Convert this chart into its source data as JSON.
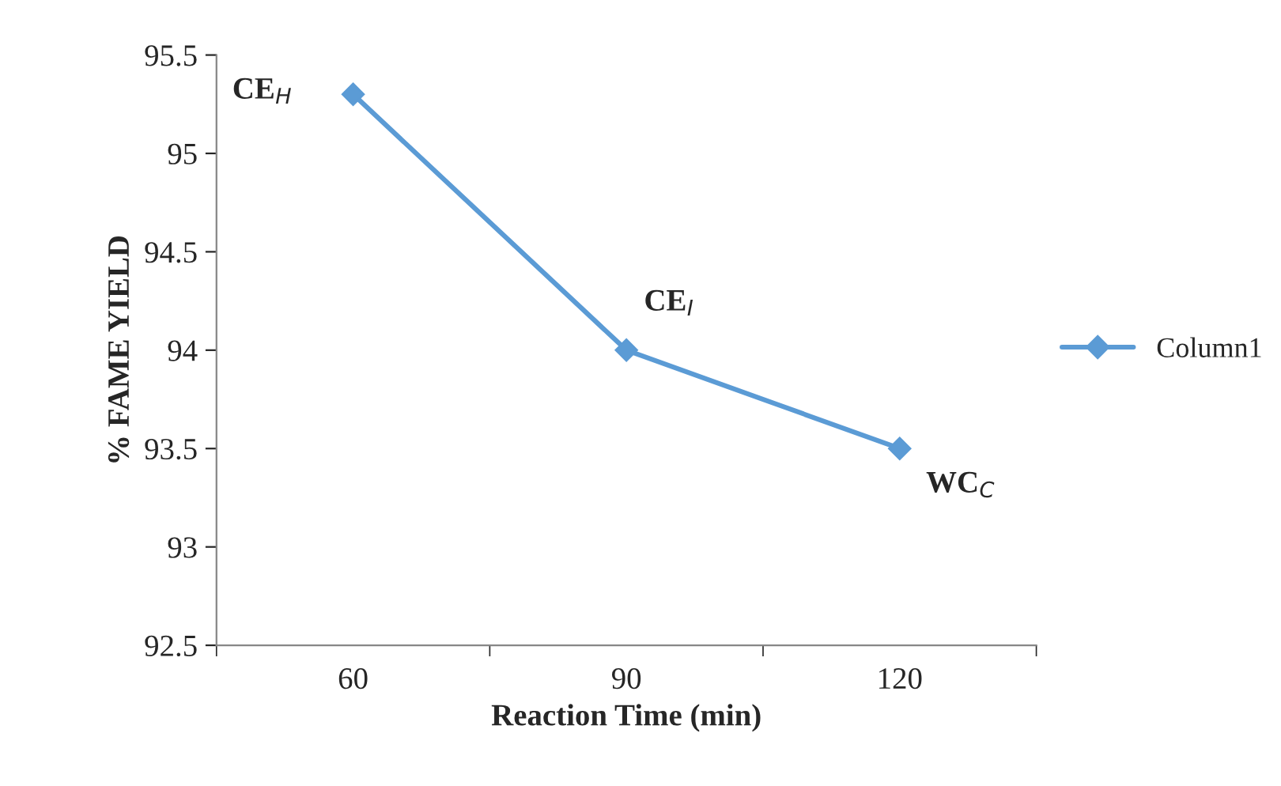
{
  "chart_data": {
    "type": "line",
    "xlabel": "Reaction Time (min)",
    "ylabel": "% FAME YIELD",
    "categories": [
      "60",
      "90",
      "120"
    ],
    "series": [
      {
        "name": "Column1",
        "color": "#5b9bd5",
        "values": [
          95.3,
          94,
          93.5
        ]
      }
    ],
    "ylim": [
      92.5,
      95.5
    ],
    "yticks": [
      92.5,
      93,
      93.5,
      94,
      94.5,
      95,
      95.5
    ],
    "marker": "diamond",
    "line_style": "solid",
    "legend": "right",
    "grid": false,
    "annotations": [
      {
        "text": "CE$_{H}$",
        "x": "60",
        "y": 95.3
      },
      {
        "text": "CE$_{I}$",
        "x": "90",
        "y": 94
      },
      {
        "text": "WC$_{C}$",
        "x": "120",
        "y": 93.5
      }
    ]
  }
}
